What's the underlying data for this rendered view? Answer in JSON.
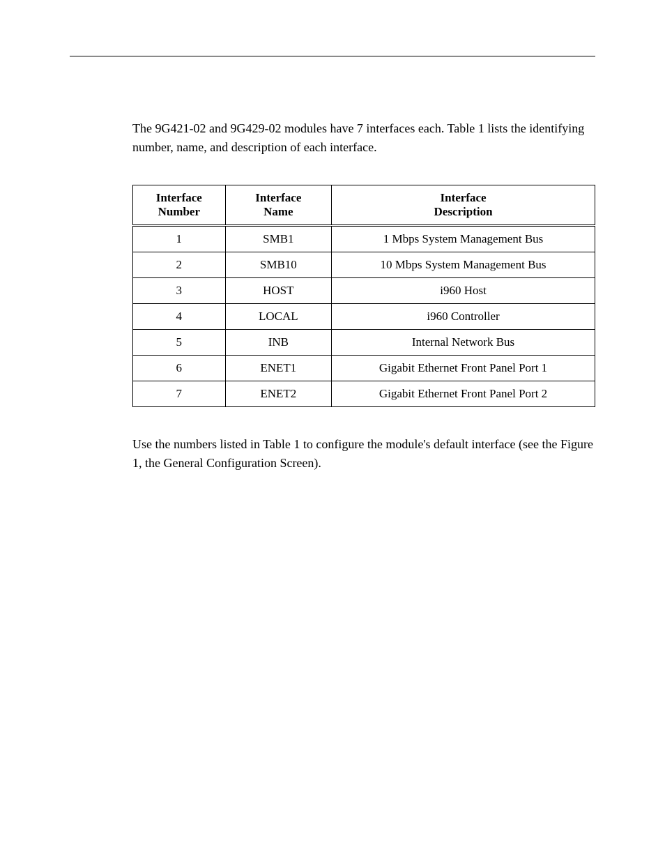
{
  "intro_text": "The 9G421-02 and 9G429-02 modules have 7 interfaces each. Table 1 lists the identifying number, name, and description of each interface.",
  "table": {
    "headers": {
      "number_line1": "Interface",
      "number_line2": "Number",
      "name_line1": "Interface",
      "name_line2": "Name",
      "desc_line1": "Interface",
      "desc_line2": "Description"
    },
    "rows": [
      {
        "number": "1",
        "name": "SMB1",
        "desc": "1 Mbps System Management Bus"
      },
      {
        "number": "2",
        "name": "SMB10",
        "desc": "10 Mbps System Management Bus"
      },
      {
        "number": "3",
        "name": "HOST",
        "desc": "i960 Host"
      },
      {
        "number": "4",
        "name": "LOCAL",
        "desc": "i960 Controller"
      },
      {
        "number": "5",
        "name": "INB",
        "desc": "Internal Network Bus"
      },
      {
        "number": "6",
        "name": "ENET1",
        "desc": "Gigabit Ethernet Front Panel Port 1"
      },
      {
        "number": "7",
        "name": "ENET2",
        "desc": "Gigabit Ethernet Front Panel Port 2"
      }
    ]
  },
  "outro_text": "Use the numbers listed in Table 1 to configure the module's default interface (see the Figure 1, the General Configuration Screen)."
}
